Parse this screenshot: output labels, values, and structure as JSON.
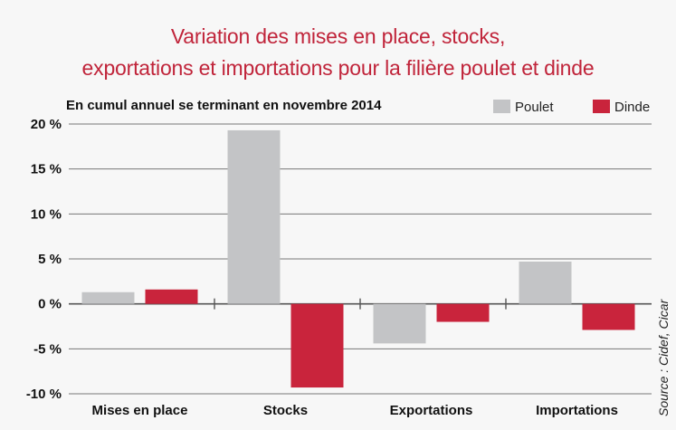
{
  "chart_data": {
    "type": "bar",
    "title": "Variation des mises en place, stocks, exportations et importations pour la filière poulet et dinde",
    "title_lines": [
      "Variation des mises en place, stocks,",
      "exportations et importations pour la filière poulet et dinde"
    ],
    "subtitle": "En cumul annuel se terminant en novembre 2014",
    "categories": [
      "Mises en place",
      "Stocks",
      "Exportations",
      "Importations"
    ],
    "series": [
      {
        "name": "Poulet",
        "color": "#c3c4c6",
        "values": [
          1.3,
          19.3,
          -4.4,
          4.7
        ]
      },
      {
        "name": "Dinde",
        "color": "#c9243c",
        "values": [
          1.6,
          -9.3,
          -2.0,
          -2.9
        ]
      }
    ],
    "ylim": [
      -10,
      20
    ],
    "yticks": [
      20,
      15,
      10,
      5,
      0,
      -5,
      -10
    ],
    "ytick_labels": [
      "20 %",
      "15 %",
      "10 %",
      "5 %",
      "0 %",
      "-5 %",
      "-10 %"
    ],
    "xlabel": "",
    "ylabel": "",
    "grid": true,
    "legend_position": "top-right",
    "source": "Source : Cidef, Cicar"
  }
}
